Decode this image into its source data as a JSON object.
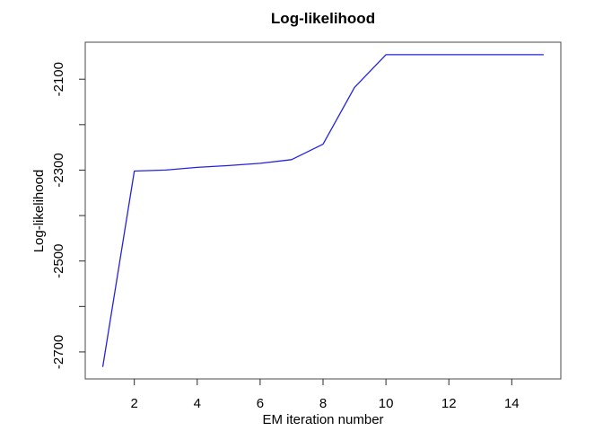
{
  "chart": {
    "title": "Log-likelihood",
    "x_axis_label": "EM iteration number",
    "y_axis_label": "Log-likelihood"
  },
  "colors": {
    "background": "#ffffff",
    "line": "#2323dd",
    "box": "#4a4a4a",
    "tick": "#2a2a2a",
    "text": "#000000"
  },
  "chart_data": {
    "type": "line",
    "title": "Log-likelihood",
    "xlabel": "EM iteration number",
    "ylabel": "Log-likelihood",
    "series": [
      {
        "name": "log-likelihood",
        "x": [
          1,
          2,
          3,
          4,
          5,
          6,
          7,
          8,
          9,
          10,
          11,
          12,
          13,
          14,
          15
        ],
        "y": [
          -2732,
          -2302,
          -2300,
          -2294,
          -2290,
          -2285,
          -2277,
          -2243,
          -2118,
          -2046,
          -2046,
          -2046,
          -2046,
          -2046,
          -2046
        ]
      }
    ],
    "xlim": [
      0.44,
      15.56
    ],
    "ylim": [
      -2759.4,
      -2018.6
    ],
    "x_ticks": [
      2,
      4,
      6,
      8,
      10,
      12,
      14
    ],
    "x_tick_labels": [
      "2",
      "4",
      "6",
      "8",
      "10",
      "12",
      "14"
    ],
    "y_ticks": [
      -2100,
      -2200,
      -2300,
      -2400,
      -2500,
      -2600,
      -2700
    ],
    "y_tick_labels": [
      "-2100",
      "",
      "-2300",
      "",
      "-2500",
      "",
      "-2700"
    ],
    "grid": false,
    "legend": null
  }
}
